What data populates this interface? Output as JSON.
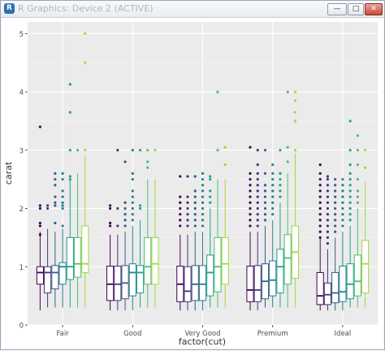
{
  "window": {
    "title": "R Graphics: Device 2 (ACTIVE)",
    "app_icon": "R",
    "minimize_glyph": "—",
    "maximize_glyph": "□",
    "close_glyph": "✕"
  },
  "chart_data": {
    "type": "boxplot",
    "xlabel": "factor(cut)",
    "ylabel": "carat",
    "ylim": [
      0,
      5.2
    ],
    "yticks": [
      "0",
      "1",
      "2",
      "3",
      "4",
      "5"
    ],
    "grid": true,
    "categories": [
      "Fair",
      "Good",
      "Very Good",
      "Premium",
      "Ideal"
    ],
    "series_colors": [
      "#440154",
      "#46337e",
      "#365c8d",
      "#277f8e",
      "#1fa187",
      "#4ac16d",
      "#a0da39",
      "#fde725"
    ],
    "boxes": [
      [
        {
          "min": 0.25,
          "q1": 0.7,
          "med": 0.9,
          "q3": 1.0,
          "max": 1.6,
          "out": [
            1.55,
            1.7,
            1.75,
            2.0,
            2.05,
            3.4
          ]
        },
        {
          "min": 0.3,
          "q1": 0.55,
          "med": 0.9,
          "q3": 1.0,
          "max": 1.65,
          "out": [
            2.0,
            2.05
          ]
        },
        {
          "min": 0.3,
          "q1": 0.62,
          "med": 0.9,
          "q3": 1.02,
          "max": 1.6,
          "out": [
            1.75,
            2.05,
            2.1,
            2.2,
            2.4,
            2.5,
            2.6
          ]
        },
        {
          "min": 0.3,
          "q1": 0.7,
          "med": 1.0,
          "q3": 1.07,
          "max": 1.65,
          "out": [
            1.7,
            2.0,
            2.05,
            2.1,
            2.2,
            2.3,
            2.5,
            2.6
          ]
        },
        {
          "min": 0.3,
          "q1": 0.78,
          "med": 1.0,
          "q3": 1.5,
          "max": 2.5,
          "out": [
            2.5,
            2.55,
            3.0,
            3.65,
            4.13
          ]
        },
        {
          "min": 0.3,
          "q1": 0.82,
          "med": 1.05,
          "q3": 1.5,
          "max": 2.6,
          "out": [
            3.0
          ]
        },
        {
          "min": 0.3,
          "q1": 0.9,
          "med": 1.05,
          "q3": 1.7,
          "max": 2.9,
          "out": [
            3.0,
            4.5,
            5.0
          ]
        }
      ],
      [
        {
          "min": 0.25,
          "q1": 0.42,
          "med": 0.7,
          "q3": 1.01,
          "max": 1.55,
          "out": [
            1.7,
            1.75,
            2.0,
            2.05
          ]
        },
        {
          "min": 0.25,
          "q1": 0.42,
          "med": 0.7,
          "q3": 1.01,
          "max": 1.55,
          "out": [
            1.7,
            2.0,
            3.0
          ]
        },
        {
          "min": 0.25,
          "q1": 0.45,
          "med": 0.72,
          "q3": 1.02,
          "max": 1.6,
          "out": [
            1.7,
            1.8,
            1.9,
            2.0,
            2.1,
            2.8
          ]
        },
        {
          "min": 0.25,
          "q1": 0.5,
          "med": 0.9,
          "q3": 1.05,
          "max": 1.7,
          "out": [
            1.8,
            1.9,
            2.0,
            2.1,
            2.2,
            2.3,
            2.5,
            2.6,
            3.0
          ]
        },
        {
          "min": 0.3,
          "q1": 0.55,
          "med": 0.9,
          "q3": 1.02,
          "max": 1.8,
          "out": [
            2.0,
            2.05,
            3.0
          ]
        },
        {
          "min": 0.3,
          "q1": 0.7,
          "med": 1.0,
          "q3": 1.5,
          "max": 2.5,
          "out": [
            2.7,
            2.8,
            3.0
          ]
        },
        {
          "min": 0.3,
          "q1": 0.7,
          "med": 1.05,
          "q3": 1.5,
          "max": 2.5,
          "out": [
            3.0
          ]
        }
      ],
      [
        {
          "min": 0.25,
          "q1": 0.4,
          "med": 0.7,
          "q3": 1.01,
          "max": 1.55,
          "out": [
            1.7,
            1.8,
            1.9,
            2.0,
            2.1,
            2.2,
            2.55
          ]
        },
        {
          "min": 0.25,
          "q1": 0.4,
          "med": 0.58,
          "q3": 1.0,
          "max": 1.55,
          "out": [
            1.7,
            1.8,
            1.9,
            2.0,
            2.1,
            2.2,
            2.55
          ]
        },
        {
          "min": 0.25,
          "q1": 0.42,
          "med": 0.7,
          "q3": 1.02,
          "max": 1.6,
          "out": [
            1.7,
            1.8,
            1.9,
            2.0,
            2.1,
            2.2,
            2.3,
            2.55
          ]
        },
        {
          "min": 0.25,
          "q1": 0.42,
          "med": 0.7,
          "q3": 1.02,
          "max": 1.6,
          "out": [
            1.7,
            1.8,
            1.9,
            2.0,
            2.1,
            2.2,
            2.3,
            2.4,
            2.5,
            2.6
          ]
        },
        {
          "min": 0.3,
          "q1": 0.5,
          "med": 0.9,
          "q3": 1.2,
          "max": 2.0,
          "out": [
            2.1,
            2.2,
            2.3,
            2.5,
            2.55
          ]
        },
        {
          "min": 0.3,
          "q1": 0.57,
          "med": 1.0,
          "q3": 1.5,
          "max": 2.5,
          "out": [
            3.0,
            4.0
          ]
        },
        {
          "min": 0.3,
          "q1": 0.7,
          "med": 1.05,
          "q3": 1.5,
          "max": 2.5,
          "out": [
            2.75,
            3.05
          ]
        }
      ],
      [
        {
          "min": 0.25,
          "q1": 0.4,
          "med": 0.6,
          "q3": 1.01,
          "max": 1.6,
          "out": [
            1.7,
            1.8,
            1.9,
            2.0,
            2.1,
            2.2,
            2.3,
            2.4,
            2.5,
            2.6,
            3.05
          ]
        },
        {
          "min": 0.25,
          "q1": 0.4,
          "med": 0.6,
          "q3": 1.02,
          "max": 1.6,
          "out": [
            1.7,
            1.8,
            1.9,
            2.0,
            2.1,
            2.2,
            2.3,
            2.4,
            2.5,
            2.6,
            2.75,
            3.0
          ]
        },
        {
          "min": 0.3,
          "q1": 0.45,
          "med": 0.75,
          "q3": 1.05,
          "max": 1.7,
          "out": [
            1.8,
            1.9,
            2.0,
            2.1,
            2.2,
            2.3,
            2.4,
            2.6,
            3.0
          ]
        },
        {
          "min": 0.3,
          "q1": 0.5,
          "med": 0.77,
          "q3": 1.1,
          "max": 1.8,
          "out": [
            1.9,
            2.0,
            2.1,
            2.2,
            2.3,
            2.4,
            2.5,
            2.6,
            2.75
          ]
        },
        {
          "min": 0.3,
          "q1": 0.55,
          "med": 1.0,
          "q3": 1.3,
          "max": 2.1,
          "out": [
            2.2,
            2.3,
            2.4,
            2.5,
            2.6,
            3.0
          ]
        },
        {
          "min": 0.3,
          "q1": 0.7,
          "med": 1.15,
          "q3": 1.55,
          "max": 2.6,
          "out": [
            2.8,
            3.05,
            4.0
          ]
        },
        {
          "min": 0.3,
          "q1": 0.8,
          "med": 1.25,
          "q3": 1.7,
          "max": 2.95,
          "out": [
            3.0,
            3.5,
            3.65,
            3.85,
            4.0
          ]
        }
      ],
      [
        {
          "min": 0.25,
          "q1": 0.35,
          "med": 0.5,
          "q3": 0.9,
          "max": 1.5,
          "out": [
            1.5,
            1.6,
            1.7,
            1.8,
            1.9,
            2.0,
            2.1,
            2.2,
            2.3,
            2.4,
            2.5,
            2.6,
            2.75
          ]
        },
        {
          "min": 0.25,
          "q1": 0.35,
          "med": 0.52,
          "q3": 0.72,
          "max": 1.3,
          "out": [
            1.4,
            1.5,
            1.6,
            1.7,
            1.8,
            1.9,
            2.0,
            2.1,
            2.2,
            2.3,
            2.4,
            2.5,
            2.55
          ]
        },
        {
          "min": 0.25,
          "q1": 0.38,
          "med": 0.55,
          "q3": 0.9,
          "max": 1.5,
          "out": [
            1.6,
            1.7,
            1.8,
            1.9,
            2.0,
            2.1,
            2.2,
            2.3,
            2.4,
            2.5
          ]
        },
        {
          "min": 0.25,
          "q1": 0.4,
          "med": 0.57,
          "q3": 1.01,
          "max": 1.6,
          "out": [
            1.7,
            1.8,
            1.9,
            2.0,
            2.1,
            2.2,
            2.3,
            2.4,
            2.5
          ]
        },
        {
          "min": 0.3,
          "q1": 0.45,
          "med": 0.7,
          "q3": 1.05,
          "max": 1.7,
          "out": [
            1.8,
            1.9,
            2.0,
            2.1,
            2.2,
            2.3,
            2.4,
            2.5,
            2.6,
            2.75,
            3.0,
            3.5
          ]
        },
        {
          "min": 0.3,
          "q1": 0.5,
          "med": 0.75,
          "q3": 1.2,
          "max": 2.0,
          "out": [
            2.1,
            2.2,
            2.3,
            2.5,
            2.75,
            3.0,
            3.25
          ]
        },
        {
          "min": 0.3,
          "q1": 0.55,
          "med": 1.05,
          "q3": 1.45,
          "max": 2.45,
          "out": [
            2.7,
            3.0
          ]
        }
      ]
    ]
  }
}
